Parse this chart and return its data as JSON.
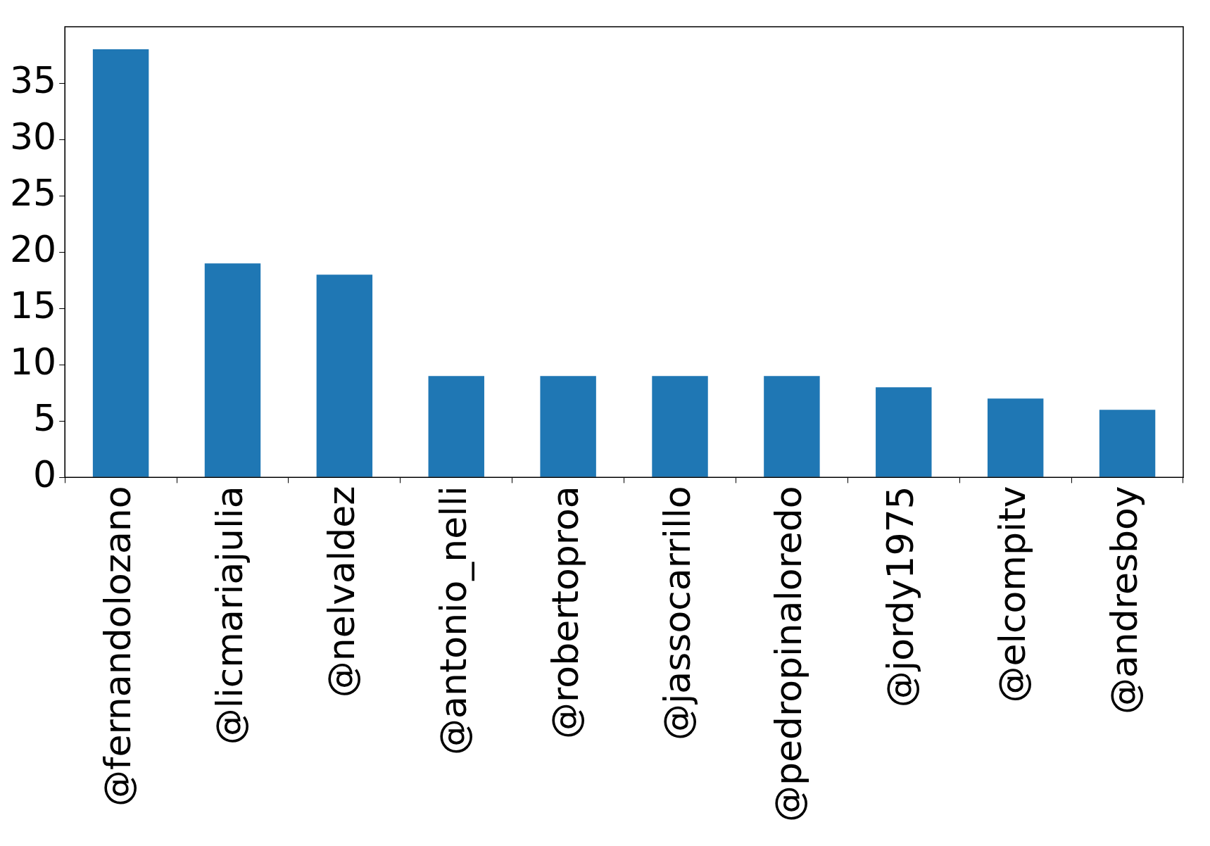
{
  "chart_data": {
    "type": "bar",
    "categories": [
      "@fernandolozano",
      "@licmariajulia",
      "@nelvaldez",
      "@antonio_nelli",
      "@robertoproa",
      "@jassocarrillo",
      "@pedropinaloredo",
      "@jordy1975",
      "@elcompitv",
      "@andresboy"
    ],
    "values": [
      38,
      19,
      18,
      9,
      9,
      9,
      9,
      8,
      7,
      6
    ],
    "color": "#1f77b4",
    "ylim": [
      0,
      40
    ],
    "yticks": [
      0,
      5,
      10,
      15,
      20,
      25,
      30,
      35
    ],
    "grid": false,
    "legend": false
  }
}
